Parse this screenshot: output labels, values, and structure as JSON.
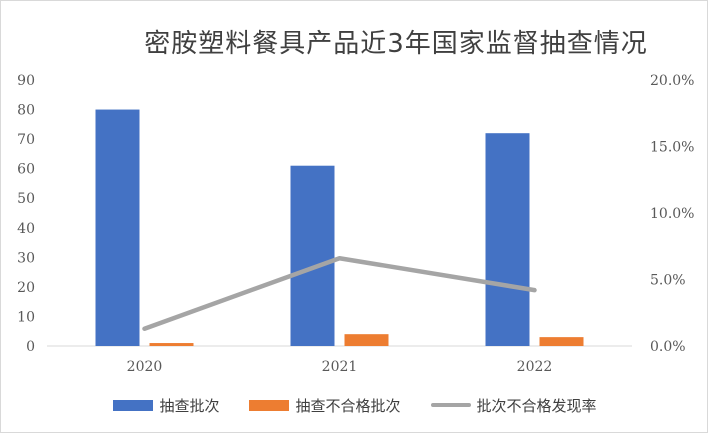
{
  "chart_data": {
    "type": "bar",
    "title": "密胺塑料餐具产品近3年国家监督抽查情况",
    "categories": [
      "2020",
      "2021",
      "2022"
    ],
    "series": [
      {
        "name": "抽查批次",
        "type": "bar",
        "axis": "left",
        "color": "#4472C4",
        "values": [
          80,
          61,
          72
        ]
      },
      {
        "name": "抽查不合格批次",
        "type": "bar",
        "axis": "left",
        "color": "#ED7D31",
        "values": [
          1,
          4,
          3
        ]
      },
      {
        "name": "批次不合格发现率",
        "type": "line",
        "axis": "right",
        "color": "#A5A5A5",
        "values": [
          1.3,
          6.6,
          4.2
        ]
      }
    ],
    "y_left": {
      "min": 0,
      "max": 90,
      "ticks": [
        "0",
        "10",
        "20",
        "30",
        "40",
        "50",
        "60",
        "70",
        "80",
        "90"
      ]
    },
    "y_right": {
      "min": 0,
      "max": 20,
      "ticks": [
        "0.0%",
        "5.0%",
        "10.0%",
        "15.0%",
        "20.0%"
      ]
    },
    "grid": false,
    "legend_position": "bottom"
  }
}
